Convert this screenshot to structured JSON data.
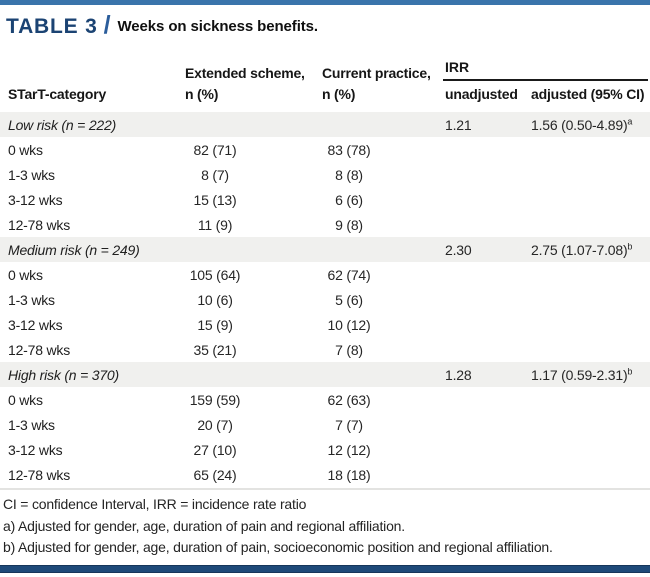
{
  "title": {
    "label": "TABLE 3",
    "slash": "/",
    "caption": "Weeks on sickness benefits."
  },
  "table": {
    "headers": {
      "category": "STarT-category",
      "extended_line1": "Extended scheme,",
      "extended_line2": "n (%)",
      "current_line1": "Current practice,",
      "current_line2": "n (%)",
      "irr_group": "IRR",
      "unadjusted": "unadjusted",
      "adjusted": "adjusted (95% CI)"
    },
    "groups": [
      {
        "label": "Low risk (n = 222)",
        "irr_unadjusted": "1.21",
        "irr_adjusted": "1.56 (0.50-4.89)",
        "irr_adjusted_sup": "a",
        "rows": [
          {
            "label": "0 wks",
            "extended": "82 (71)",
            "current": "83 (78)"
          },
          {
            "label": "1-3 wks",
            "extended": "8 (7)",
            "current": "8 (8)"
          },
          {
            "label": "3-12 wks",
            "extended": "15 (13)",
            "current": "6 (6)"
          },
          {
            "label": "12-78 wks",
            "extended": "11 (9)",
            "current": "9 (8)"
          }
        ]
      },
      {
        "label": "Medium risk (n = 249)",
        "irr_unadjusted": "2.30",
        "irr_adjusted": "2.75 (1.07-7.08)",
        "irr_adjusted_sup": "b",
        "rows": [
          {
            "label": "0 wks",
            "extended": "105 (64)",
            "current": "62 (74)"
          },
          {
            "label": "1-3 wks",
            "extended": "10 (6)",
            "current": "5 (6)"
          },
          {
            "label": "3-12 wks",
            "extended": "15 (9)",
            "current": "10 (12)"
          },
          {
            "label": "12-78 wks",
            "extended": "35 (21)",
            "current": "7 (8)"
          }
        ]
      },
      {
        "label": "High risk (n = 370)",
        "irr_unadjusted": "1.28",
        "irr_adjusted": "1.17 (0.59-2.31)",
        "irr_adjusted_sup": "b",
        "rows": [
          {
            "label": "0 wks",
            "extended": "159 (59)",
            "current": "62 (63)"
          },
          {
            "label": "1-3 wks",
            "extended": "20 (7)",
            "current": "7 (7)"
          },
          {
            "label": "3-12 wks",
            "extended": "27 (10)",
            "current": "12 (12)"
          },
          {
            "label": "12-78 wks",
            "extended": "65 (24)",
            "current": "18 (18)"
          }
        ]
      }
    ],
    "footnotes": [
      "CI = confidence Interval, IRR = incidence rate ratio",
      "a) Adjusted for gender, age, duration of pain and regional affiliation.",
      "b) Adjusted for gender, age, duration of pain, socioeconomic position and regional affiliation."
    ]
  },
  "colors": {
    "accent_blue": "#3a74ab",
    "title_navy": "#1b4373",
    "band_gray": "#f0f0ee",
    "bottom_bar_navy": "#1e4a79"
  }
}
